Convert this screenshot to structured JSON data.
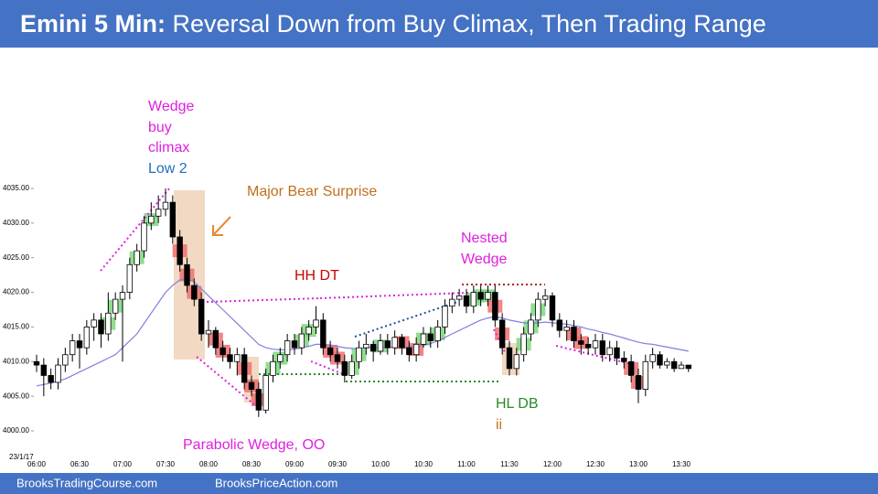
{
  "chart_data": {
    "type": "candlestick",
    "title_bold": "Emini 5 Min:",
    "title": "Reversal Down from Buy Climax, Then Trading Range",
    "date_label": "23/1/17",
    "footer": [
      "BrooksTradingCourse.com",
      "BrooksPriceAction.com"
    ],
    "annotations": [
      "Wedge",
      "buy",
      "climax",
      "Low 2",
      "Major Bear Surprise",
      "HH DT",
      "Nested",
      "Wedge",
      "Parabolic Wedge, OO",
      "HL DB",
      "ii"
    ],
    "categories": [
      "06:00",
      null,
      null,
      null,
      null,
      null,
      "06:30",
      null,
      null,
      null,
      null,
      null,
      "07:00",
      null,
      null,
      null,
      null,
      null,
      "07:30",
      null,
      null,
      null,
      null,
      null,
      "08:00",
      null,
      null,
      null,
      null,
      null,
      "08:30",
      null,
      null,
      null,
      null,
      null,
      "09:00",
      null,
      null,
      null,
      null,
      null,
      "09:30",
      null,
      null,
      null,
      null,
      null,
      "10:00",
      null,
      null,
      null,
      null,
      null,
      "10:30",
      null,
      null,
      null,
      null,
      null,
      "11:00",
      null,
      null,
      null,
      null,
      null,
      "11:30",
      null,
      null,
      null,
      null,
      null,
      "12:00",
      null,
      null,
      null,
      null,
      null,
      "12:30",
      null,
      null,
      null,
      null,
      null,
      "13:00",
      null,
      null,
      null,
      null,
      null,
      "13:30",
      null
    ],
    "open": [
      4010,
      4009.5,
      4008,
      4007,
      4009.5,
      4011,
      4013,
      4012,
      4015,
      4016,
      4014,
      4017,
      4019,
      4020,
      4024,
      4026,
      4030,
      4031,
      4032,
      4033,
      4028,
      4024,
      4021,
      4019,
      4014,
      4014.5,
      4012,
      4011,
      4010,
      4011,
      4007,
      4006,
      4003,
      4008,
      4010,
      4011,
      4013,
      4012,
      4014,
      4015,
      4016,
      4012,
      4011,
      4010,
      4008,
      4010,
      4012,
      4012.5,
      4011.5,
      4013,
      4012,
      4013.5,
      4012,
      4011,
      4012.5,
      4014,
      4013,
      4015,
      4018,
      4019,
      4019.5,
      4018,
      4020,
      4019,
      4020,
      4016,
      4012,
      4009,
      4011,
      4014,
      4016,
      4019,
      4019.5,
      4016,
      4014.5,
      4015,
      4013,
      4012.5,
      4012,
      4013,
      4011,
      4012,
      4010.5,
      4010,
      4008,
      4006,
      4010,
      4011,
      4009.5,
      4010,
      4009,
      4009.5
    ],
    "high": [
      4011,
      4010.5,
      4009,
      4010.5,
      4012,
      4014,
      4014,
      4016,
      4017,
      4017,
      4020,
      4020,
      4021,
      4025,
      4027,
      4031,
      4033,
      4034,
      4035,
      4034,
      4029,
      4025,
      4022,
      4020,
      4016,
      4015,
      4013,
      4012,
      4012,
      4012,
      4008,
      4007,
      4009,
      4011,
      4012,
      4014,
      4014,
      4015,
      4016,
      4018,
      4017,
      4013,
      4012,
      4011,
      4011,
      4013,
      4014,
      4013,
      4014,
      4014,
      4014.5,
      4014,
      4013,
      4013.5,
      4015,
      4015,
      4016,
      4019,
      4020,
      4020.5,
      4020.5,
      4021,
      4021,
      4021,
      4021,
      4017,
      4013,
      4012,
      4015,
      4017,
      4020,
      4020.5,
      4020,
      4017,
      4016,
      4016,
      4014,
      4013.5,
      4014,
      4014,
      4013,
      4013,
      4011.5,
      4011,
      4009,
      4011,
      4012,
      4011.5,
      4010.5,
      4010.5,
      4010,
      4009.5
    ],
    "low": [
      4008.5,
      4005,
      4006,
      4006,
      4008.5,
      4010,
      4009,
      4011,
      4013,
      4012,
      4013,
      4016,
      4010,
      4019,
      4023,
      4025,
      4029,
      4030,
      4031,
      4027,
      4023,
      4020,
      4018,
      4013,
      4012,
      4011,
      4010,
      4009,
      4008,
      4006,
      4005,
      4002,
      4002.5,
      4007,
      4009,
      4010,
      4011,
      4011,
      4013,
      4014,
      4011,
      4010,
      4009,
      4007,
      4007.5,
      4009,
      4011,
      4010,
      4011,
      4011,
      4011,
      4011,
      4010,
      4010,
      4012,
      4012,
      4012,
      4014,
      4017,
      4018,
      4017,
      4017,
      4018,
      4018,
      4015,
      4011,
      4008,
      4008,
      4010,
      4013,
      4015,
      4018,
      4015,
      4013.5,
      4013,
      4012,
      4011,
      4011,
      4011,
      4010,
      4010,
      4009.5,
      4009,
      4007,
      4004,
      4005,
      4009,
      4009,
      4009,
      4008.5,
      4009,
      4008.5
    ],
    "close": [
      4009.5,
      4008,
      4007,
      4009.5,
      4011,
      4013,
      4012,
      4015,
      4016,
      4014,
      4017,
      4019,
      4020,
      4024,
      4026,
      4030,
      4031,
      4032,
      4033,
      4028,
      4024,
      4021,
      4019,
      4014,
      4014.5,
      4012,
      4011,
      4010,
      4011,
      4007,
      4006,
      4003,
      4008,
      4010,
      4011,
      4013,
      4012,
      4014,
      4015,
      4016,
      4012,
      4011,
      4010,
      4008,
      4010,
      4012,
      4012.5,
      4011.5,
      4013,
      4012,
      4013.5,
      4012,
      4011,
      4012.5,
      4014,
      4013,
      4015,
      4018,
      4019,
      4019.5,
      4018,
      4020,
      4019,
      4020,
      4016,
      4012,
      4009,
      4011,
      4014,
      4016,
      4019,
      4019.5,
      4016,
      4014.5,
      4015,
      4013,
      4012.5,
      4012,
      4013,
      4011,
      4012,
      4010.5,
      4010,
      4008,
      4006,
      4010,
      4011,
      4009.5,
      4010,
      4009,
      4009.5,
      4009
    ],
    "up_color": "#ffffff",
    "down_color": "#000000",
    "moving_average": {
      "color": "#8080e0",
      "values": [
        4006.5,
        4006.7,
        4006.9,
        4007.2,
        4007.5,
        4008,
        4008.5,
        4009,
        4009.5,
        4010,
        4010.5,
        4011,
        4012,
        4013,
        4014,
        4015.5,
        4017,
        4018.5,
        4020,
        4021,
        4021.8,
        4022,
        4021.5,
        4020.5,
        4019.5,
        4018.5,
        4017.5,
        4016.5,
        4015.5,
        4014.5,
        4013.5,
        4012.5,
        4012,
        4011.8,
        4011.7,
        4011.7,
        4011.8,
        4012,
        4012.2,
        4012.5,
        4012.5,
        4012.4,
        4012.2,
        4012,
        4011.9,
        4011.9,
        4012,
        4012,
        4012,
        4012,
        4012.1,
        4012.1,
        4012.1,
        4012.2,
        4012.4,
        4012.6,
        4013,
        4013.5,
        4014,
        4014.5,
        4015,
        4015.5,
        4016,
        4016.3,
        4016.5,
        4016.3,
        4016,
        4015.8,
        4015.6,
        4015.5,
        4015.6,
        4015.7,
        4015.6,
        4015.5,
        4015.4,
        4015.2,
        4015,
        4014.7,
        4014.5,
        4014.2,
        4014,
        4013.7,
        4013.4,
        4013.1,
        4012.8,
        4012.6,
        4012.5,
        4012.3,
        4012.1,
        4011.9,
        4011.7,
        4011.5
      ]
    },
    "ylim": [
      4000,
      4035
    ],
    "yticks": [
      {
        "value": 4000,
        "label": "4000.00"
      },
      {
        "value": 4005,
        "label": "4005.00"
      },
      {
        "value": 4010,
        "label": "4010.00"
      },
      {
        "value": 4015,
        "label": "4015.00"
      },
      {
        "value": 4020,
        "label": "4020.00"
      },
      {
        "value": 4025,
        "label": "4025.00"
      },
      {
        "value": 4030,
        "label": "4030.00"
      },
      {
        "value": 4035,
        "label": "4035.00"
      }
    ],
    "grid": false
  }
}
